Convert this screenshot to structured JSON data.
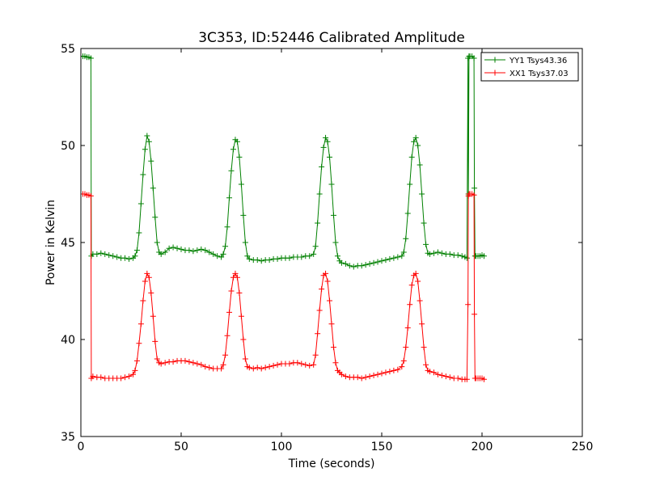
{
  "chart_data": {
    "type": "line",
    "title": "3C353, ID:52446 Calibrated Amplitude",
    "xlabel": "Time (seconds)",
    "ylabel": "Power in Kelvin",
    "xlim": [
      0,
      250
    ],
    "ylim": [
      35,
      55
    ],
    "xticks": [
      "0",
      "50",
      "100",
      "150",
      "200",
      "250"
    ],
    "yticks": [
      "35",
      "40",
      "45",
      "50",
      "55"
    ],
    "grid": false,
    "legend_position": "top-right",
    "marker": "+",
    "series": [
      {
        "name": "YY1 Tsys43.36",
        "color": "#008000",
        "points": [
          [
            0,
            54.6
          ],
          [
            1,
            54.6
          ],
          [
            2,
            54.6
          ],
          [
            3,
            54.55
          ],
          [
            4,
            54.55
          ],
          [
            5,
            54.5
          ],
          [
            5.2,
            44.3
          ],
          [
            6,
            44.4
          ],
          [
            8,
            44.4
          ],
          [
            10,
            44.45
          ],
          [
            12,
            44.4
          ],
          [
            14,
            44.35
          ],
          [
            16,
            44.3
          ],
          [
            18,
            44.25
          ],
          [
            20,
            44.2
          ],
          [
            22,
            44.2
          ],
          [
            24,
            44.15
          ],
          [
            26,
            44.2
          ],
          [
            27,
            44.3
          ],
          [
            28,
            44.6
          ],
          [
            29,
            45.5
          ],
          [
            30,
            47.0
          ],
          [
            31,
            48.5
          ],
          [
            32,
            49.8
          ],
          [
            33,
            50.5
          ],
          [
            34,
            50.2
          ],
          [
            35,
            49.2
          ],
          [
            36,
            47.8
          ],
          [
            37,
            46.3
          ],
          [
            38,
            45.0
          ],
          [
            39,
            44.5
          ],
          [
            40,
            44.4
          ],
          [
            42,
            44.5
          ],
          [
            44,
            44.7
          ],
          [
            46,
            44.75
          ],
          [
            48,
            44.7
          ],
          [
            50,
            44.65
          ],
          [
            52,
            44.6
          ],
          [
            54,
            44.6
          ],
          [
            56,
            44.55
          ],
          [
            58,
            44.6
          ],
          [
            60,
            44.65
          ],
          [
            62,
            44.6
          ],
          [
            64,
            44.5
          ],
          [
            66,
            44.4
          ],
          [
            68,
            44.3
          ],
          [
            70,
            44.25
          ],
          [
            71,
            44.4
          ],
          [
            72,
            44.8
          ],
          [
            73,
            45.8
          ],
          [
            74,
            47.3
          ],
          [
            75,
            48.7
          ],
          [
            76,
            49.8
          ],
          [
            77,
            50.3
          ],
          [
            78,
            50.2
          ],
          [
            79,
            49.4
          ],
          [
            80,
            48.0
          ],
          [
            81,
            46.4
          ],
          [
            82,
            45.0
          ],
          [
            83,
            44.3
          ],
          [
            84,
            44.15
          ],
          [
            86,
            44.1
          ],
          [
            88,
            44.1
          ],
          [
            90,
            44.05
          ],
          [
            92,
            44.1
          ],
          [
            94,
            44.1
          ],
          [
            96,
            44.15
          ],
          [
            98,
            44.15
          ],
          [
            100,
            44.2
          ],
          [
            102,
            44.2
          ],
          [
            104,
            44.2
          ],
          [
            106,
            44.25
          ],
          [
            108,
            44.25
          ],
          [
            110,
            44.25
          ],
          [
            112,
            44.3
          ],
          [
            114,
            44.3
          ],
          [
            116,
            44.4
          ],
          [
            117,
            44.8
          ],
          [
            118,
            46.0
          ],
          [
            119,
            47.5
          ],
          [
            120,
            48.9
          ],
          [
            121,
            49.9
          ],
          [
            122,
            50.4
          ],
          [
            123,
            50.2
          ],
          [
            124,
            49.4
          ],
          [
            125,
            48.0
          ],
          [
            126,
            46.4
          ],
          [
            127,
            45.0
          ],
          [
            128,
            44.3
          ],
          [
            129,
            44.05
          ],
          [
            130,
            43.95
          ],
          [
            132,
            43.9
          ],
          [
            134,
            43.8
          ],
          [
            136,
            43.75
          ],
          [
            138,
            43.8
          ],
          [
            140,
            43.8
          ],
          [
            142,
            43.85
          ],
          [
            144,
            43.9
          ],
          [
            146,
            43.95
          ],
          [
            148,
            44.0
          ],
          [
            150,
            44.05
          ],
          [
            152,
            44.1
          ],
          [
            154,
            44.15
          ],
          [
            156,
            44.2
          ],
          [
            158,
            44.25
          ],
          [
            160,
            44.3
          ],
          [
            161,
            44.5
          ],
          [
            162,
            45.2
          ],
          [
            163,
            46.5
          ],
          [
            164,
            48.0
          ],
          [
            165,
            49.4
          ],
          [
            166,
            50.2
          ],
          [
            167,
            50.4
          ],
          [
            168,
            50.0
          ],
          [
            169,
            49.0
          ],
          [
            170,
            47.5
          ],
          [
            171,
            46.0
          ],
          [
            172,
            44.9
          ],
          [
            173,
            44.45
          ],
          [
            174,
            44.4
          ],
          [
            176,
            44.45
          ],
          [
            178,
            44.5
          ],
          [
            180,
            44.45
          ],
          [
            182,
            44.4
          ],
          [
            184,
            44.4
          ],
          [
            186,
            44.35
          ],
          [
            188,
            44.35
          ],
          [
            190,
            44.3
          ],
          [
            191.5,
            44.25
          ],
          [
            192.5,
            44.2
          ],
          [
            193,
            54.5
          ],
          [
            193.2,
            47.5
          ],
          [
            193.5,
            54.6
          ],
          [
            194,
            54.6
          ],
          [
            195,
            54.6
          ],
          [
            196,
            54.5
          ],
          [
            196.2,
            47.8
          ],
          [
            196.5,
            44.3
          ],
          [
            197,
            44.3
          ],
          [
            198,
            44.3
          ],
          [
            199,
            44.3
          ],
          [
            200,
            44.35
          ],
          [
            201,
            44.3
          ]
        ]
      },
      {
        "name": "XX1 Tsys37.03",
        "color": "#ff0000",
        "points": [
          [
            0,
            47.5
          ],
          [
            1,
            47.5
          ],
          [
            2,
            47.5
          ],
          [
            3,
            47.45
          ],
          [
            4,
            47.45
          ],
          [
            5,
            47.4
          ],
          [
            5.2,
            38.0
          ],
          [
            6,
            38.1
          ],
          [
            8,
            38.05
          ],
          [
            10,
            38.05
          ],
          [
            12,
            38.0
          ],
          [
            14,
            38.0
          ],
          [
            16,
            38.0
          ],
          [
            18,
            38.0
          ],
          [
            20,
            38.0
          ],
          [
            22,
            38.05
          ],
          [
            24,
            38.1
          ],
          [
            26,
            38.2
          ],
          [
            27,
            38.4
          ],
          [
            28,
            38.9
          ],
          [
            29,
            39.8
          ],
          [
            30,
            40.8
          ],
          [
            31,
            42.0
          ],
          [
            32,
            43.0
          ],
          [
            33,
            43.4
          ],
          [
            34,
            43.2
          ],
          [
            35,
            42.4
          ],
          [
            36,
            41.2
          ],
          [
            37,
            39.9
          ],
          [
            38,
            39.0
          ],
          [
            39,
            38.8
          ],
          [
            40,
            38.75
          ],
          [
            42,
            38.8
          ],
          [
            44,
            38.85
          ],
          [
            46,
            38.85
          ],
          [
            48,
            38.9
          ],
          [
            50,
            38.9
          ],
          [
            52,
            38.9
          ],
          [
            54,
            38.85
          ],
          [
            56,
            38.8
          ],
          [
            58,
            38.75
          ],
          [
            60,
            38.7
          ],
          [
            62,
            38.6
          ],
          [
            64,
            38.55
          ],
          [
            66,
            38.5
          ],
          [
            68,
            38.5
          ],
          [
            70,
            38.5
          ],
          [
            71,
            38.7
          ],
          [
            72,
            39.2
          ],
          [
            73,
            40.2
          ],
          [
            74,
            41.4
          ],
          [
            75,
            42.5
          ],
          [
            76,
            43.2
          ],
          [
            77,
            43.4
          ],
          [
            78,
            43.2
          ],
          [
            79,
            42.4
          ],
          [
            80,
            41.2
          ],
          [
            81,
            40.0
          ],
          [
            82,
            39.0
          ],
          [
            83,
            38.6
          ],
          [
            84,
            38.55
          ],
          [
            86,
            38.5
          ],
          [
            88,
            38.55
          ],
          [
            90,
            38.5
          ],
          [
            92,
            38.55
          ],
          [
            94,
            38.6
          ],
          [
            96,
            38.65
          ],
          [
            98,
            38.7
          ],
          [
            100,
            38.75
          ],
          [
            102,
            38.75
          ],
          [
            104,
            38.75
          ],
          [
            106,
            38.8
          ],
          [
            108,
            38.8
          ],
          [
            110,
            38.75
          ],
          [
            112,
            38.7
          ],
          [
            114,
            38.65
          ],
          [
            116,
            38.7
          ],
          [
            117,
            39.2
          ],
          [
            118,
            40.3
          ],
          [
            119,
            41.5
          ],
          [
            120,
            42.6
          ],
          [
            121,
            43.3
          ],
          [
            122,
            43.4
          ],
          [
            123,
            43.0
          ],
          [
            124,
            42.0
          ],
          [
            125,
            40.8
          ],
          [
            126,
            39.6
          ],
          [
            127,
            38.8
          ],
          [
            128,
            38.4
          ],
          [
            129,
            38.3
          ],
          [
            130,
            38.2
          ],
          [
            132,
            38.1
          ],
          [
            134,
            38.05
          ],
          [
            136,
            38.05
          ],
          [
            138,
            38.05
          ],
          [
            140,
            38.0
          ],
          [
            142,
            38.05
          ],
          [
            144,
            38.1
          ],
          [
            146,
            38.15
          ],
          [
            148,
            38.2
          ],
          [
            150,
            38.25
          ],
          [
            152,
            38.3
          ],
          [
            154,
            38.35
          ],
          [
            156,
            38.4
          ],
          [
            158,
            38.45
          ],
          [
            160,
            38.6
          ],
          [
            161,
            38.9
          ],
          [
            162,
            39.6
          ],
          [
            163,
            40.6
          ],
          [
            164,
            41.8
          ],
          [
            165,
            42.8
          ],
          [
            166,
            43.3
          ],
          [
            167,
            43.4
          ],
          [
            168,
            43.0
          ],
          [
            169,
            42.0
          ],
          [
            170,
            40.8
          ],
          [
            171,
            39.6
          ],
          [
            172,
            38.7
          ],
          [
            173,
            38.4
          ],
          [
            174,
            38.35
          ],
          [
            176,
            38.3
          ],
          [
            178,
            38.2
          ],
          [
            180,
            38.15
          ],
          [
            182,
            38.1
          ],
          [
            184,
            38.05
          ],
          [
            186,
            38.0
          ],
          [
            188,
            38.0
          ],
          [
            190,
            37.95
          ],
          [
            191.5,
            37.95
          ],
          [
            192.5,
            37.95
          ],
          [
            193,
            41.8
          ],
          [
            193.2,
            47.4
          ],
          [
            193.5,
            47.5
          ],
          [
            194,
            47.5
          ],
          [
            195,
            47.5
          ],
          [
            196,
            47.45
          ],
          [
            196.2,
            41.3
          ],
          [
            196.5,
            38.0
          ],
          [
            197,
            38.0
          ],
          [
            198,
            38.0
          ],
          [
            199,
            38.0
          ],
          [
            200,
            38.0
          ],
          [
            201,
            37.95
          ]
        ]
      }
    ]
  }
}
